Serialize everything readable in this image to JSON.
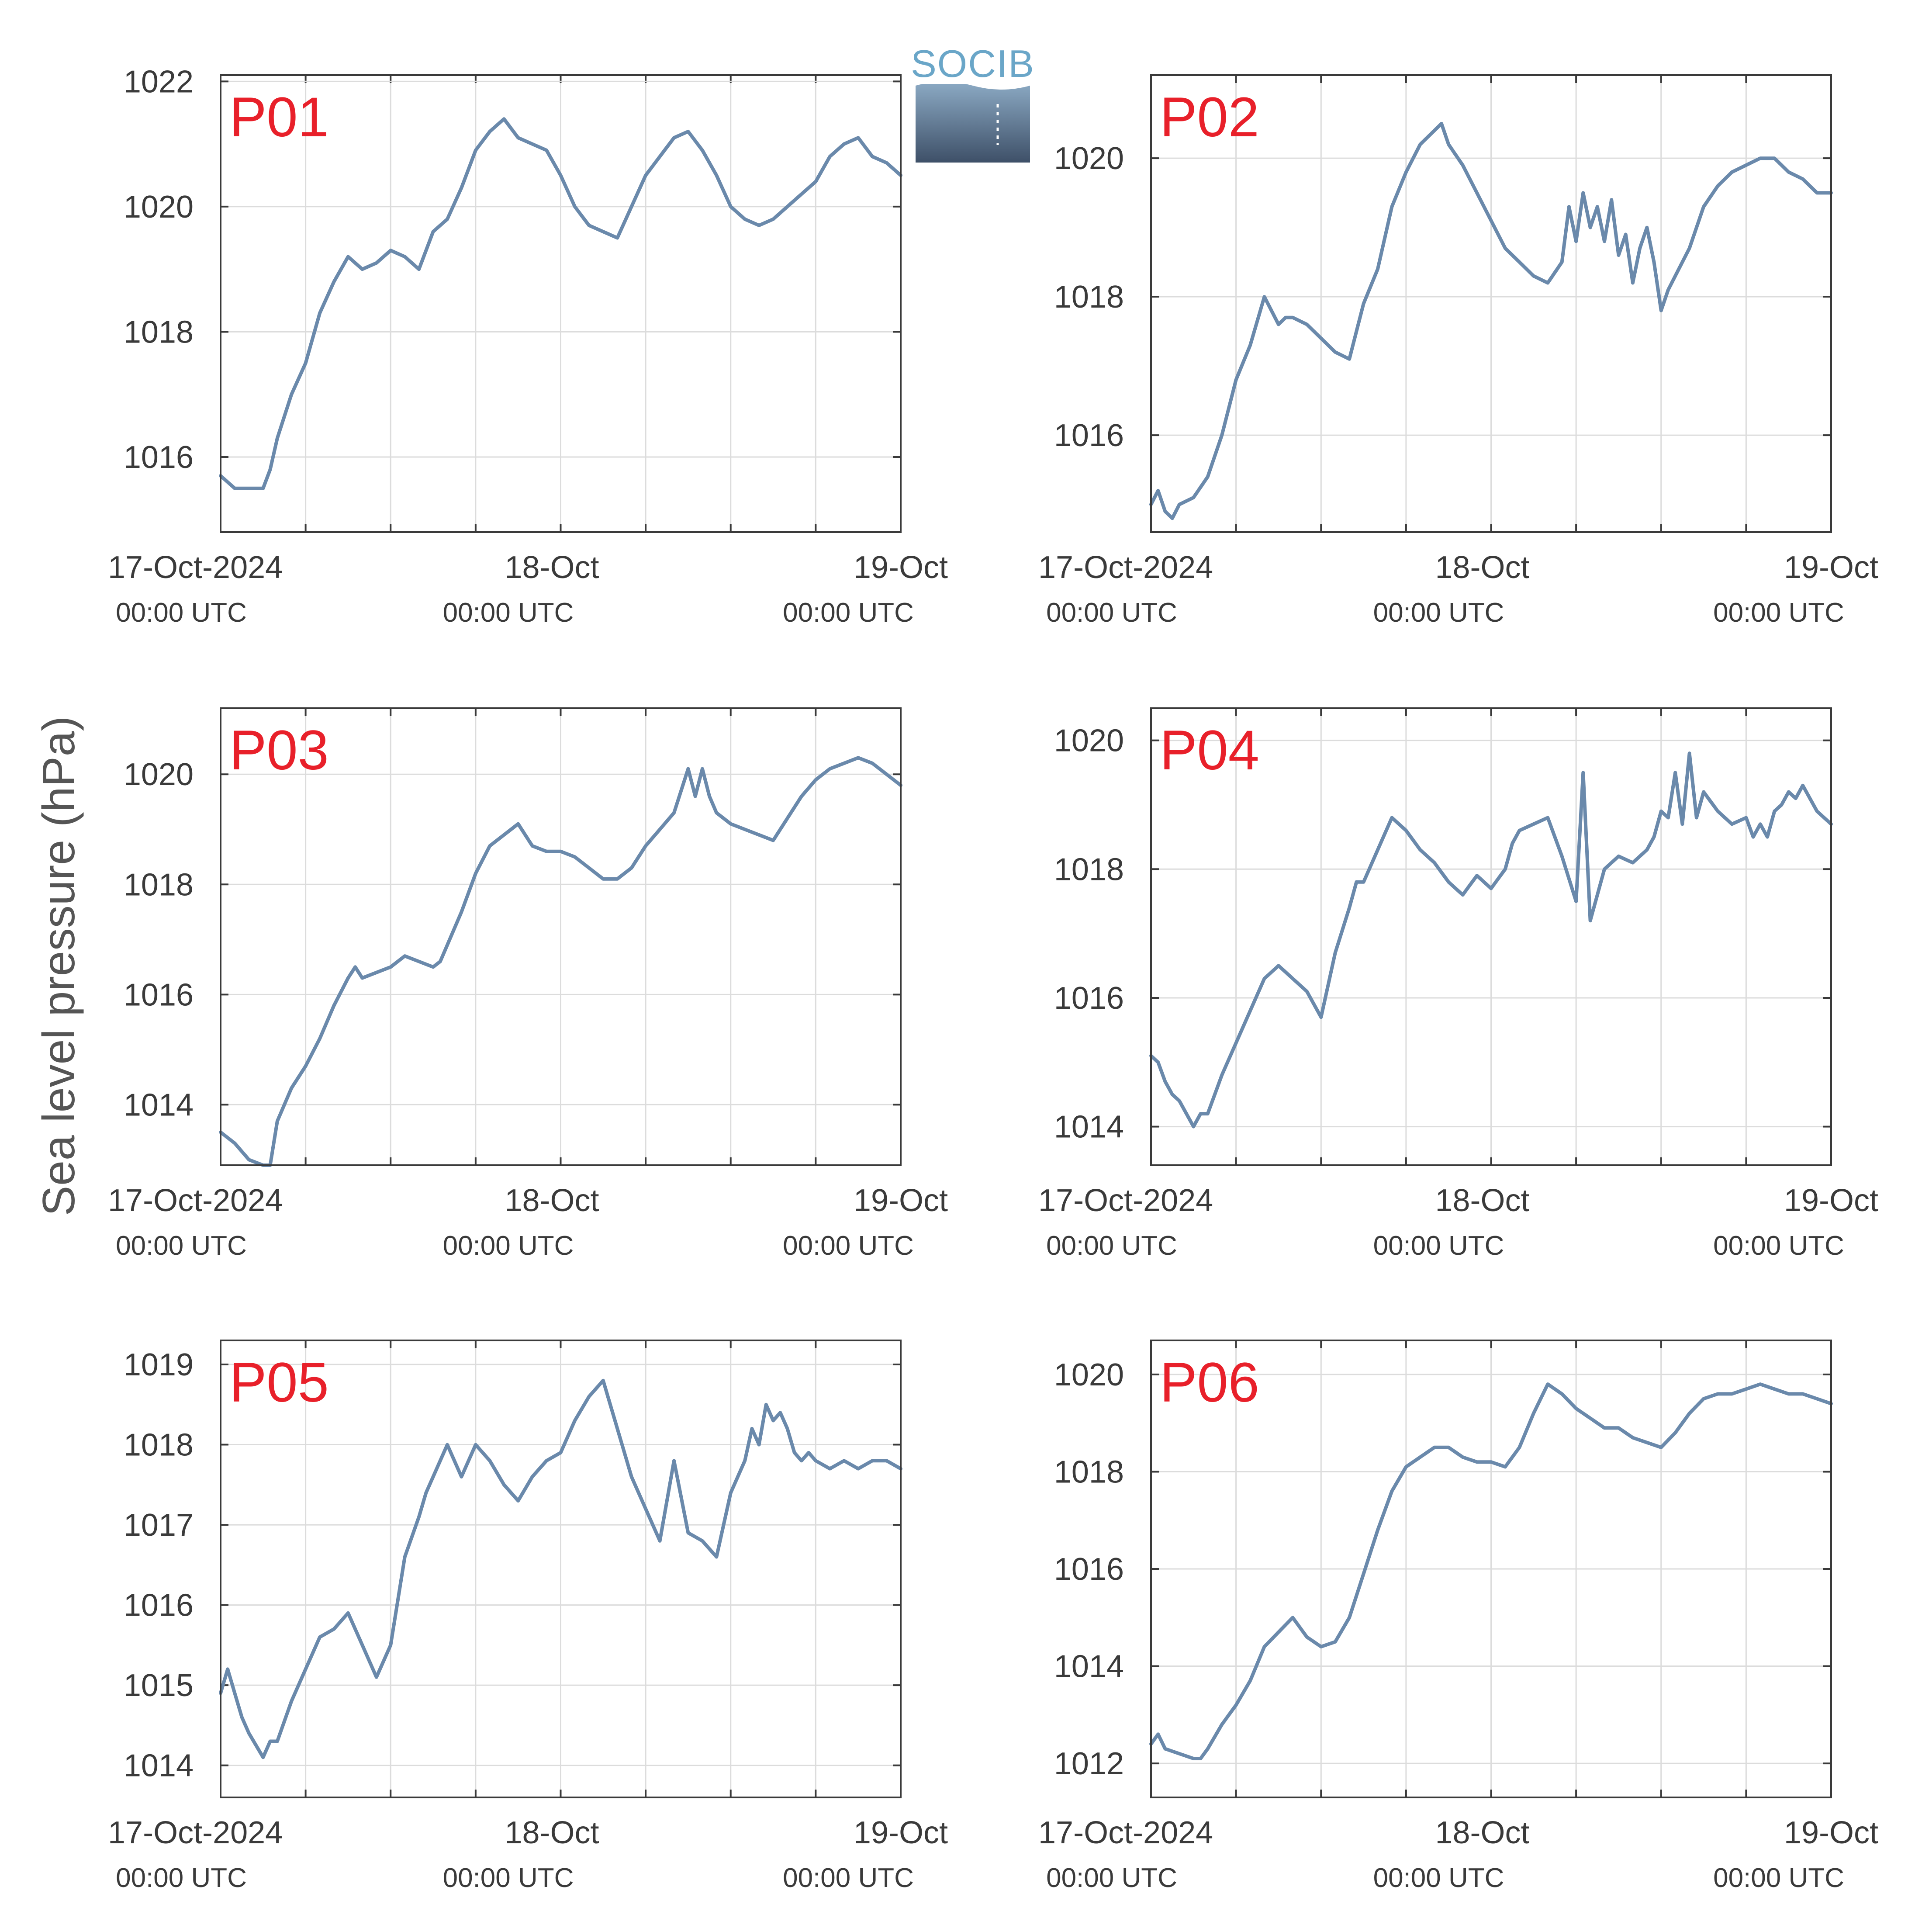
{
  "ylabel": "Sea level pressure (hPa)",
  "logo": {
    "text": "SOCIB"
  },
  "colors": {
    "series": "#6a89ab",
    "label": "#e8202a",
    "logo_text": "#6aa6c8",
    "logo_top": "#8aa8c2",
    "logo_bottom": "#3e5068"
  },
  "x_ticks": [
    {
      "t": 0,
      "label": "17-Oct-2024",
      "sub": "00:00 UTC"
    },
    {
      "t": 24,
      "label": "18-Oct",
      "sub": "00:00 UTC"
    },
    {
      "t": 48,
      "label": "19-Oct",
      "sub": "00:00 UTC"
    }
  ],
  "chart_data": [
    {
      "type": "line",
      "label": "P01",
      "xlim": [
        0,
        48
      ],
      "ylim": [
        1014.8,
        1022.1
      ],
      "yticks": [
        1016,
        1018,
        1020,
        1022
      ],
      "grid": true,
      "x": [
        0,
        1,
        2,
        3,
        3.5,
        4,
        5,
        6,
        7,
        8,
        9,
        9.5,
        10,
        11,
        12,
        13,
        14,
        15,
        15.5,
        16,
        17,
        18,
        19,
        20,
        21,
        22,
        23,
        24,
        25,
        26,
        27,
        28,
        29,
        30,
        31,
        32,
        33,
        34,
        35,
        36,
        37,
        38,
        39,
        40,
        41,
        42,
        43,
        44,
        45,
        46,
        47,
        48
      ],
      "values": [
        1015.7,
        1015.5,
        1015.5,
        1015.5,
        1015.8,
        1016.3,
        1017.0,
        1017.5,
        1018.3,
        1018.8,
        1019.2,
        1019.1,
        1019.0,
        1019.1,
        1019.3,
        1019.2,
        1019.0,
        1019.6,
        1019.7,
        1019.8,
        1020.3,
        1020.9,
        1021.2,
        1021.4,
        1021.1,
        1021.0,
        1020.9,
        1020.5,
        1020.0,
        1019.7,
        1019.6,
        1019.5,
        1020.0,
        1020.5,
        1020.8,
        1021.1,
        1021.2,
        1020.9,
        1020.5,
        1020.0,
        1019.8,
        1019.7,
        1019.8,
        1020.0,
        1020.2,
        1020.4,
        1020.8,
        1021.0,
        1021.1,
        1020.8,
        1020.7,
        1020.5
      ]
    },
    {
      "type": "line",
      "label": "P02",
      "xlim": [
        0,
        48
      ],
      "ylim": [
        1014.6,
        1021.2
      ],
      "yticks": [
        1016,
        1018,
        1020
      ],
      "grid": true,
      "x": [
        0,
        0.5,
        1,
        1.5,
        2,
        3,
        4,
        5,
        6,
        7,
        8,
        9,
        9.5,
        10,
        11,
        12,
        13,
        14,
        14.5,
        15,
        16,
        17,
        18,
        19,
        20,
        20.5,
        21,
        22,
        23,
        24,
        25,
        26,
        27,
        28,
        29,
        29.5,
        30,
        30.5,
        31,
        31.5,
        32,
        32.5,
        33,
        33.5,
        34,
        34.5,
        35,
        35.5,
        36,
        36.5,
        37,
        38,
        39,
        40,
        41,
        42,
        43,
        44,
        45,
        46,
        47,
        48
      ],
      "values": [
        1015.0,
        1015.2,
        1014.9,
        1014.8,
        1015.0,
        1015.1,
        1015.4,
        1016.0,
        1016.8,
        1017.3,
        1018.0,
        1017.6,
        1017.7,
        1017.7,
        1017.6,
        1017.4,
        1017.2,
        1017.1,
        1017.5,
        1017.9,
        1018.4,
        1019.3,
        1019.8,
        1020.2,
        1020.4,
        1020.5,
        1020.2,
        1019.9,
        1019.5,
        1019.1,
        1018.7,
        1018.5,
        1018.3,
        1018.2,
        1018.5,
        1019.3,
        1018.8,
        1019.5,
        1019.0,
        1019.3,
        1018.8,
        1019.4,
        1018.6,
        1018.9,
        1018.2,
        1018.7,
        1019.0,
        1018.5,
        1017.8,
        1018.1,
        1018.3,
        1018.7,
        1019.3,
        1019.6,
        1019.8,
        1019.9,
        1020.0,
        1020.0,
        1019.8,
        1019.7,
        1019.5,
        1019.5
      ]
    },
    {
      "type": "line",
      "label": "P03",
      "xlim": [
        0,
        48
      ],
      "ylim": [
        1012.9,
        1021.2
      ],
      "yticks": [
        1014,
        1016,
        1018,
        1020
      ],
      "grid": true,
      "x": [
        0,
        1,
        2,
        3,
        3.5,
        4,
        5,
        6,
        7,
        8,
        9,
        9.5,
        10,
        11,
        12,
        13,
        14,
        15,
        15.5,
        16,
        17,
        18,
        19,
        20,
        21,
        22,
        23,
        24,
        25,
        26,
        27,
        28,
        29,
        30,
        31,
        32,
        33,
        33.5,
        34,
        34.5,
        35,
        36,
        37,
        38,
        39,
        40,
        41,
        42,
        43,
        44,
        45,
        46,
        47,
        48
      ],
      "values": [
        1013.5,
        1013.3,
        1013.0,
        1012.9,
        1012.9,
        1013.7,
        1014.3,
        1014.7,
        1015.2,
        1015.8,
        1016.3,
        1016.5,
        1016.3,
        1016.4,
        1016.5,
        1016.7,
        1016.6,
        1016.5,
        1016.6,
        1016.9,
        1017.5,
        1018.2,
        1018.7,
        1018.9,
        1019.1,
        1018.7,
        1018.6,
        1018.6,
        1018.5,
        1018.3,
        1018.1,
        1018.1,
        1018.3,
        1018.7,
        1019.0,
        1019.3,
        1020.1,
        1019.6,
        1020.1,
        1019.6,
        1019.3,
        1019.1,
        1019.0,
        1018.9,
        1018.8,
        1019.2,
        1019.6,
        1019.9,
        1020.1,
        1020.2,
        1020.3,
        1020.2,
        1020.0,
        1019.8
      ]
    },
    {
      "type": "line",
      "label": "P04",
      "xlim": [
        0,
        48
      ],
      "ylim": [
        1013.4,
        1020.5
      ],
      "yticks": [
        1014,
        1016,
        1018,
        1020
      ],
      "grid": true,
      "x": [
        0,
        0.5,
        1,
        1.5,
        2,
        3,
        3.5,
        4,
        5,
        6,
        7,
        8,
        9,
        9.5,
        10,
        11,
        12,
        13,
        14,
        14.5,
        15,
        16,
        17,
        18,
        19,
        19.5,
        20,
        21,
        22,
        23,
        24,
        25,
        25.5,
        26,
        27,
        28,
        29,
        30,
        30.5,
        31,
        32,
        33,
        34,
        35,
        35.5,
        36,
        36.5,
        37,
        37.5,
        38,
        38.5,
        39,
        40,
        41,
        42,
        42.5,
        43,
        43.5,
        44,
        44.5,
        45,
        45.5,
        46,
        47,
        48
      ],
      "values": [
        1015.1,
        1015.0,
        1014.7,
        1014.5,
        1014.4,
        1014.0,
        1014.2,
        1014.2,
        1014.8,
        1015.3,
        1015.8,
        1016.3,
        1016.5,
        1016.4,
        1016.3,
        1016.1,
        1015.7,
        1016.7,
        1017.4,
        1017.8,
        1017.8,
        1018.3,
        1018.8,
        1018.6,
        1018.3,
        1018.2,
        1018.1,
        1017.8,
        1017.6,
        1017.9,
        1017.7,
        1018.0,
        1018.4,
        1018.6,
        1018.7,
        1018.8,
        1018.2,
        1017.5,
        1019.5,
        1017.2,
        1018.0,
        1018.2,
        1018.1,
        1018.3,
        1018.5,
        1018.9,
        1018.8,
        1019.5,
        1018.7,
        1019.8,
        1018.8,
        1019.2,
        1018.9,
        1018.7,
        1018.8,
        1018.5,
        1018.7,
        1018.5,
        1018.9,
        1019.0,
        1019.2,
        1019.1,
        1019.3,
        1018.9,
        1018.7
      ]
    },
    {
      "type": "line",
      "label": "P05",
      "xlim": [
        0,
        48
      ],
      "ylim": [
        1013.6,
        1019.3
      ],
      "yticks": [
        1014,
        1015,
        1016,
        1017,
        1018,
        1019
      ],
      "grid": true,
      "x": [
        0,
        0.5,
        1,
        1.5,
        2,
        3,
        3.5,
        4,
        5,
        6,
        7,
        8,
        9,
        10,
        11,
        12,
        13,
        14,
        14.5,
        15,
        16,
        17,
        18,
        19,
        20,
        21,
        22,
        23,
        24,
        25,
        26,
        27,
        28,
        29,
        30,
        31,
        32,
        33,
        34,
        35,
        36,
        36.5,
        37,
        37.5,
        38,
        38.5,
        39,
        39.5,
        40,
        40.5,
        41,
        41.5,
        42,
        43,
        44,
        45,
        46,
        47,
        48
      ],
      "values": [
        1014.9,
        1015.2,
        1014.9,
        1014.6,
        1014.4,
        1014.1,
        1014.3,
        1014.3,
        1014.8,
        1015.2,
        1015.6,
        1015.7,
        1015.9,
        1015.5,
        1015.1,
        1015.5,
        1016.6,
        1017.1,
        1017.4,
        1017.6,
        1018.0,
        1017.6,
        1018.0,
        1017.8,
        1017.5,
        1017.3,
        1017.6,
        1017.8,
        1017.9,
        1018.3,
        1018.6,
        1018.8,
        1018.2,
        1017.6,
        1017.2,
        1016.8,
        1017.8,
        1016.9,
        1016.8,
        1016.6,
        1017.4,
        1017.6,
        1017.8,
        1018.2,
        1018.0,
        1018.5,
        1018.3,
        1018.4,
        1018.2,
        1017.9,
        1017.8,
        1017.9,
        1017.8,
        1017.7,
        1017.8,
        1017.7,
        1017.8,
        1017.8,
        1017.7
      ]
    },
    {
      "type": "line",
      "label": "P06",
      "xlim": [
        0,
        48
      ],
      "ylim": [
        1011.3,
        1020.7
      ],
      "yticks": [
        1012,
        1014,
        1016,
        1018,
        1020
      ],
      "grid": true,
      "x": [
        0,
        0.5,
        1,
        2,
        3,
        3.5,
        4,
        5,
        6,
        7,
        8,
        9,
        10,
        11,
        12,
        13,
        14,
        15,
        16,
        17,
        18,
        19,
        20,
        21,
        22,
        23,
        24,
        25,
        26,
        27,
        28,
        29,
        30,
        31,
        32,
        33,
        34,
        35,
        36,
        37,
        38,
        39,
        40,
        41,
        42,
        43,
        44,
        45,
        46,
        47,
        48
      ],
      "values": [
        1012.4,
        1012.6,
        1012.3,
        1012.2,
        1012.1,
        1012.1,
        1012.3,
        1012.8,
        1013.2,
        1013.7,
        1014.4,
        1014.7,
        1015.0,
        1014.6,
        1014.4,
        1014.5,
        1015.0,
        1015.9,
        1016.8,
        1017.6,
        1018.1,
        1018.3,
        1018.5,
        1018.5,
        1018.3,
        1018.2,
        1018.2,
        1018.1,
        1018.5,
        1019.2,
        1019.8,
        1019.6,
        1019.3,
        1019.1,
        1018.9,
        1018.9,
        1018.7,
        1018.6,
        1018.5,
        1018.8,
        1019.2,
        1019.5,
        1019.6,
        1019.6,
        1019.7,
        1019.8,
        1019.7,
        1019.6,
        1019.6,
        1019.5,
        1019.4
      ]
    }
  ]
}
